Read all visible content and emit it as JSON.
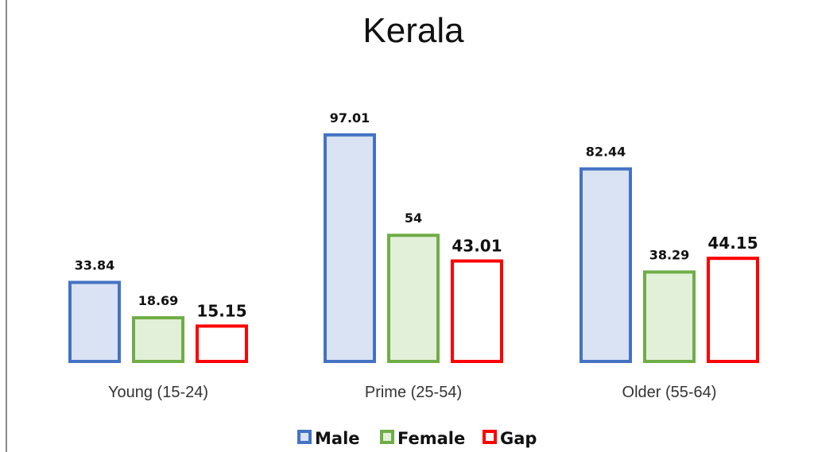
{
  "chart_data": {
    "type": "bar",
    "title": "Kerala",
    "categories": [
      "Young (15-24)",
      "Prime (25-54)",
      "Older (55-64)"
    ],
    "series": [
      {
        "name": "Male",
        "values": [
          33.84,
          97.01,
          82.44
        ],
        "labels": [
          "33.84",
          "97.01",
          "82.44"
        ],
        "stroke": "#4472C4",
        "fill": "#DAE3F3"
      },
      {
        "name": "Female",
        "values": [
          18.69,
          54,
          38.29
        ],
        "labels": [
          "18.69",
          "54",
          "38.29"
        ],
        "stroke": "#70AD47",
        "fill": "#E2F0D9"
      },
      {
        "name": "Gap",
        "values": [
          15.15,
          43.01,
          44.15
        ],
        "labels": [
          "15.15",
          "43.01",
          "44.15"
        ],
        "stroke": "#FF0000",
        "fill": "#FFFFFF"
      }
    ],
    "xlabel": "",
    "ylabel": "",
    "ylim": [
      0,
      100
    ],
    "grid": false,
    "axis_visible": false,
    "legend": "bottom"
  }
}
